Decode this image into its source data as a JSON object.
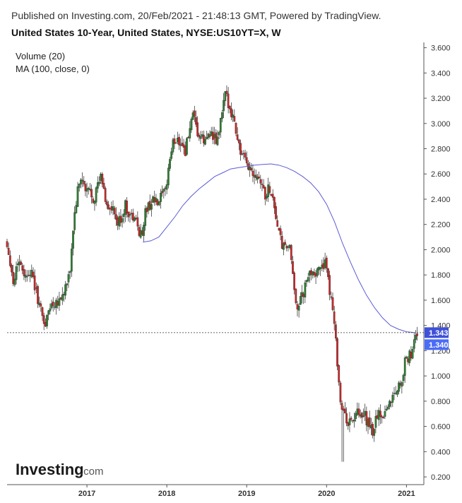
{
  "header": {
    "published": "Published on Investing.com, 20/Feb/2021 - 21:48:13 GMT, Powered by TradingView.",
    "title": "United States 10-Year, United States, NYSE:US10YT=X, W"
  },
  "legend": {
    "volume": "Volume (20)",
    "ma": "MA (100, close, 0)"
  },
  "logo": {
    "main": "Investing",
    "suffix": ".com"
  },
  "colors": {
    "up": "#2e7d32",
    "down": "#c62828",
    "ma": "#5b5bd6",
    "badge_ma": "#3f51d8",
    "badge_price": "#4a6cf7",
    "axis": "#555555"
  },
  "chart_data": {
    "type": "candlestick",
    "y_axis": {
      "ylim": [
        0.15,
        3.62
      ],
      "ticks": [
        "3.600",
        "3.400",
        "3.200",
        "3.000",
        "2.800",
        "2.600",
        "2.400",
        "2.200",
        "2.000",
        "1.800",
        "1.600",
        "1.400",
        "1.200",
        "1.000",
        "0.800",
        "0.600",
        "0.400",
        "0.200"
      ],
      "position": "right"
    },
    "x_axis": {
      "ticks": [
        "2017",
        "2018",
        "2019",
        "2020",
        "2021"
      ],
      "xlim": [
        2016.0,
        2021.2
      ]
    },
    "price_series": [
      [
        2016.0,
        2.08
      ],
      [
        2016.05,
        1.95
      ],
      [
        2016.1,
        1.72
      ],
      [
        2016.15,
        1.92
      ],
      [
        2016.2,
        1.88
      ],
      [
        2016.25,
        1.78
      ],
      [
        2016.3,
        1.85
      ],
      [
        2016.35,
        1.75
      ],
      [
        2016.4,
        1.62
      ],
      [
        2016.45,
        1.5
      ],
      [
        2016.5,
        1.4
      ],
      [
        2016.55,
        1.55
      ],
      [
        2016.6,
        1.58
      ],
      [
        2016.65,
        1.6
      ],
      [
        2016.7,
        1.62
      ],
      [
        2016.75,
        1.7
      ],
      [
        2016.8,
        1.78
      ],
      [
        2016.85,
        2.2
      ],
      [
        2016.9,
        2.45
      ],
      [
        2016.95,
        2.58
      ],
      [
        2017.0,
        2.45
      ],
      [
        2017.05,
        2.48
      ],
      [
        2017.1,
        2.4
      ],
      [
        2017.15,
        2.5
      ],
      [
        2017.2,
        2.58
      ],
      [
        2017.25,
        2.4
      ],
      [
        2017.3,
        2.32
      ],
      [
        2017.35,
        2.3
      ],
      [
        2017.4,
        2.2
      ],
      [
        2017.45,
        2.25
      ],
      [
        2017.5,
        2.35
      ],
      [
        2017.55,
        2.28
      ],
      [
        2017.6,
        2.25
      ],
      [
        2017.65,
        2.2
      ],
      [
        2017.7,
        2.1
      ],
      [
        2017.75,
        2.3
      ],
      [
        2017.8,
        2.35
      ],
      [
        2017.85,
        2.4
      ],
      [
        2017.9,
        2.35
      ],
      [
        2017.95,
        2.42
      ],
      [
        2018.0,
        2.45
      ],
      [
        2018.05,
        2.7
      ],
      [
        2018.1,
        2.85
      ],
      [
        2018.15,
        2.88
      ],
      [
        2018.2,
        2.85
      ],
      [
        2018.25,
        2.78
      ],
      [
        2018.3,
        2.95
      ],
      [
        2018.35,
        3.05
      ],
      [
        2018.4,
        2.92
      ],
      [
        2018.45,
        2.88
      ],
      [
        2018.5,
        2.85
      ],
      [
        2018.55,
        2.95
      ],
      [
        2018.6,
        2.88
      ],
      [
        2018.65,
        2.85
      ],
      [
        2018.7,
        3.05
      ],
      [
        2018.75,
        3.22
      ],
      [
        2018.8,
        3.15
      ],
      [
        2018.85,
        3.05
      ],
      [
        2018.9,
        2.9
      ],
      [
        2018.95,
        2.75
      ],
      [
        2019.0,
        2.7
      ],
      [
        2019.05,
        2.65
      ],
      [
        2019.1,
        2.62
      ],
      [
        2019.15,
        2.6
      ],
      [
        2019.2,
        2.55
      ],
      [
        2019.25,
        2.42
      ],
      [
        2019.3,
        2.5
      ],
      [
        2019.35,
        2.4
      ],
      [
        2019.4,
        2.2
      ],
      [
        2019.45,
        2.05
      ],
      [
        2019.5,
        2.0
      ],
      [
        2019.55,
        2.05
      ],
      [
        2019.6,
        1.75
      ],
      [
        2019.65,
        1.55
      ],
      [
        2019.7,
        1.6
      ],
      [
        2019.75,
        1.7
      ],
      [
        2019.8,
        1.8
      ],
      [
        2019.85,
        1.85
      ],
      [
        2019.9,
        1.8
      ],
      [
        2019.95,
        1.9
      ],
      [
        2020.0,
        1.88
      ],
      [
        2020.05,
        1.7
      ],
      [
        2020.1,
        1.55
      ],
      [
        2020.15,
        1.15
      ],
      [
        2020.2,
        0.75
      ],
      [
        2020.25,
        0.68
      ],
      [
        2020.3,
        0.62
      ],
      [
        2020.35,
        0.66
      ],
      [
        2020.4,
        0.7
      ],
      [
        2020.45,
        0.65
      ],
      [
        2020.5,
        0.68
      ],
      [
        2020.55,
        0.6
      ],
      [
        2020.6,
        0.55
      ],
      [
        2020.65,
        0.7
      ],
      [
        2020.7,
        0.68
      ],
      [
        2020.75,
        0.72
      ],
      [
        2020.8,
        0.78
      ],
      [
        2020.85,
        0.85
      ],
      [
        2020.9,
        0.9
      ],
      [
        2020.95,
        0.95
      ],
      [
        2021.0,
        1.1
      ],
      [
        2021.05,
        1.15
      ],
      [
        2021.1,
        1.2
      ],
      [
        2021.14,
        1.34
      ]
    ],
    "ma_series": [
      [
        2017.7,
        2.06
      ],
      [
        2017.8,
        2.07
      ],
      [
        2017.9,
        2.1
      ],
      [
        2018.0,
        2.18
      ],
      [
        2018.1,
        2.26
      ],
      [
        2018.2,
        2.35
      ],
      [
        2018.3,
        2.42
      ],
      [
        2018.4,
        2.48
      ],
      [
        2018.5,
        2.53
      ],
      [
        2018.6,
        2.58
      ],
      [
        2018.7,
        2.61
      ],
      [
        2018.8,
        2.64
      ],
      [
        2018.9,
        2.65
      ],
      [
        2019.0,
        2.66
      ],
      [
        2019.1,
        2.67
      ],
      [
        2019.2,
        2.675
      ],
      [
        2019.3,
        2.68
      ],
      [
        2019.4,
        2.67
      ],
      [
        2019.5,
        2.65
      ],
      [
        2019.6,
        2.62
      ],
      [
        2019.7,
        2.58
      ],
      [
        2019.8,
        2.53
      ],
      [
        2019.9,
        2.46
      ],
      [
        2020.0,
        2.36
      ],
      [
        2020.1,
        2.22
      ],
      [
        2020.2,
        2.05
      ],
      [
        2020.3,
        1.9
      ],
      [
        2020.4,
        1.76
      ],
      [
        2020.5,
        1.64
      ],
      [
        2020.6,
        1.54
      ],
      [
        2020.7,
        1.46
      ],
      [
        2020.8,
        1.4
      ],
      [
        2020.9,
        1.37
      ],
      [
        2021.0,
        1.35
      ],
      [
        2021.1,
        1.343
      ]
    ],
    "annotations": {
      "last_ma": "1.343",
      "last_price": "1.340",
      "last_ma_value": 1.343,
      "last_price_value": 1.34
    },
    "low_2020": 0.32
  }
}
